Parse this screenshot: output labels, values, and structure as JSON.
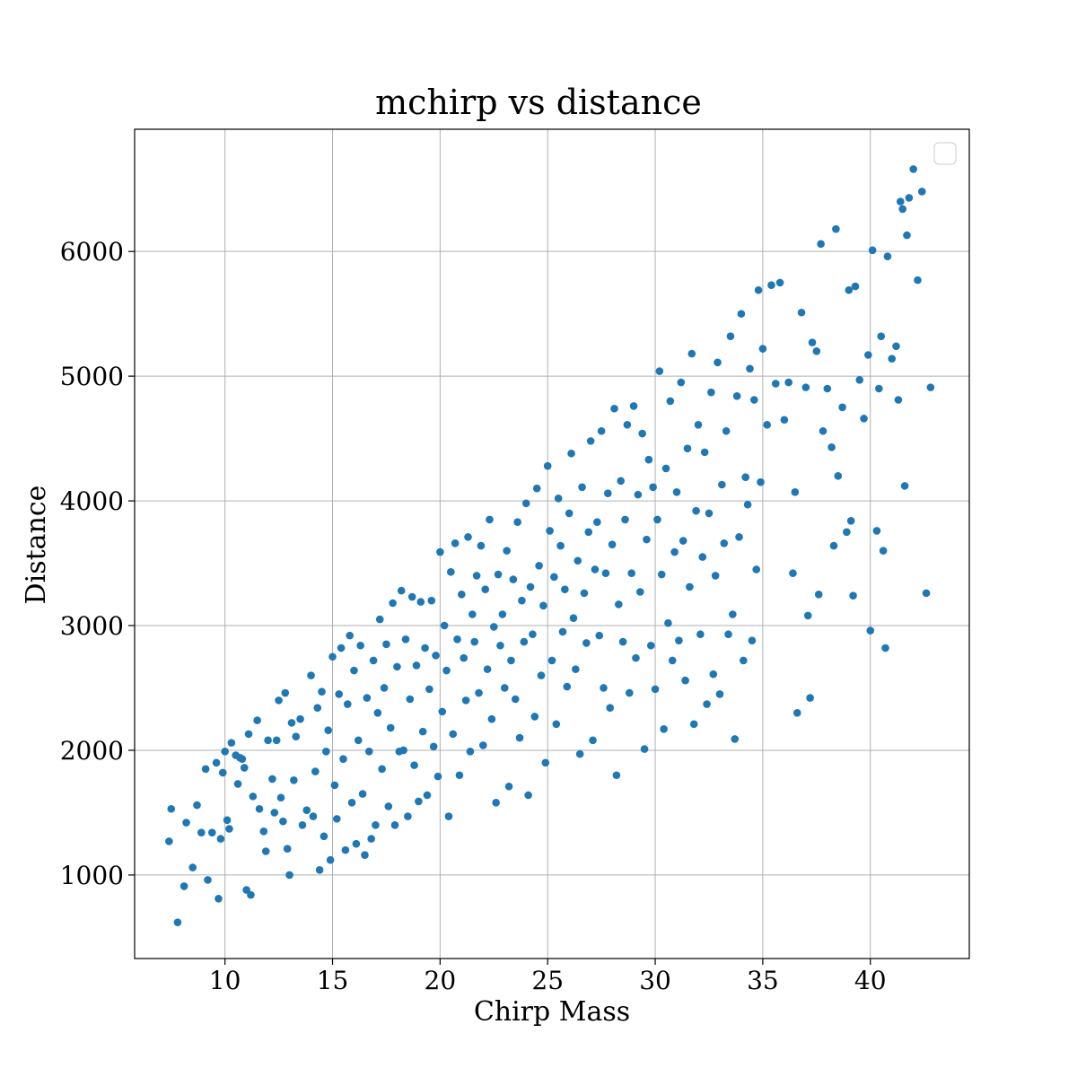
{
  "chart_data": {
    "type": "scatter",
    "title": "mchirp vs distance",
    "xlabel": "Chirp Mass",
    "ylabel": "Distance",
    "xlim": [
      5.8,
      44.6
    ],
    "ylim": [
      330,
      6980
    ],
    "xticks": [
      10,
      15,
      20,
      25,
      30,
      35,
      40
    ],
    "yticks": [
      1000,
      2000,
      3000,
      4000,
      5000,
      6000
    ],
    "grid": true,
    "legend": "top-right (empty)",
    "marker_color": "#1f77b4",
    "series": [
      {
        "points": [
          [
            7.5,
            1530
          ],
          [
            7.4,
            1270
          ],
          [
            7.8,
            620
          ],
          [
            8.1,
            910
          ],
          [
            8.2,
            1420
          ],
          [
            8.5,
            1060
          ],
          [
            8.7,
            1560
          ],
          [
            8.9,
            1340
          ],
          [
            9.1,
            1850
          ],
          [
            9.2,
            960
          ],
          [
            9.4,
            1340
          ],
          [
            9.6,
            1900
          ],
          [
            9.7,
            810
          ],
          [
            9.8,
            1290
          ],
          [
            9.9,
            1820
          ],
          [
            10.0,
            1990
          ],
          [
            10.1,
            1440
          ],
          [
            10.2,
            1370
          ],
          [
            10.3,
            2060
          ],
          [
            10.5,
            1960
          ],
          [
            10.6,
            1730
          ],
          [
            10.7,
            1940
          ],
          [
            10.8,
            1930
          ],
          [
            10.9,
            1860
          ],
          [
            11.0,
            880
          ],
          [
            11.1,
            2130
          ],
          [
            11.2,
            840
          ],
          [
            11.3,
            1630
          ],
          [
            11.5,
            2240
          ],
          [
            11.6,
            1530
          ],
          [
            11.8,
            1350
          ],
          [
            11.9,
            1190
          ],
          [
            12.0,
            2080
          ],
          [
            12.2,
            1770
          ],
          [
            12.3,
            1500
          ],
          [
            12.4,
            2080
          ],
          [
            12.5,
            2400
          ],
          [
            12.6,
            1620
          ],
          [
            12.7,
            1430
          ],
          [
            12.8,
            2460
          ],
          [
            12.9,
            1210
          ],
          [
            13.0,
            1000
          ],
          [
            13.1,
            2220
          ],
          [
            13.2,
            1760
          ],
          [
            13.3,
            2110
          ],
          [
            13.5,
            2250
          ],
          [
            13.6,
            1400
          ],
          [
            13.8,
            1520
          ],
          [
            14.0,
            2600
          ],
          [
            14.1,
            1470
          ],
          [
            14.2,
            1830
          ],
          [
            14.3,
            2340
          ],
          [
            14.4,
            1040
          ],
          [
            14.5,
            2470
          ],
          [
            14.6,
            1310
          ],
          [
            14.7,
            1990
          ],
          [
            14.8,
            2160
          ],
          [
            14.9,
            1120
          ],
          [
            15.0,
            2750
          ],
          [
            15.1,
            1720
          ],
          [
            15.2,
            1450
          ],
          [
            15.3,
            2450
          ],
          [
            15.4,
            2820
          ],
          [
            15.5,
            1930
          ],
          [
            15.6,
            1200
          ],
          [
            15.7,
            2370
          ],
          [
            15.8,
            2920
          ],
          [
            15.9,
            1580
          ],
          [
            16.0,
            2640
          ],
          [
            16.1,
            1250
          ],
          [
            16.2,
            2080
          ],
          [
            16.3,
            2840
          ],
          [
            16.4,
            1650
          ],
          [
            16.5,
            1160
          ],
          [
            16.6,
            2420
          ],
          [
            16.7,
            1990
          ],
          [
            16.8,
            1290
          ],
          [
            16.9,
            2720
          ],
          [
            17.0,
            1400
          ],
          [
            17.1,
            2300
          ],
          [
            17.2,
            3050
          ],
          [
            17.3,
            1850
          ],
          [
            17.4,
            2500
          ],
          [
            17.5,
            2850
          ],
          [
            17.6,
            1550
          ],
          [
            17.7,
            2180
          ],
          [
            17.8,
            3180
          ],
          [
            17.9,
            1400
          ],
          [
            18.0,
            2670
          ],
          [
            18.1,
            1990
          ],
          [
            18.2,
            3280
          ],
          [
            18.3,
            2000
          ],
          [
            18.4,
            2890
          ],
          [
            18.5,
            1470
          ],
          [
            18.6,
            2410
          ],
          [
            18.7,
            3230
          ],
          [
            18.8,
            1880
          ],
          [
            18.9,
            2680
          ],
          [
            19.0,
            1590
          ],
          [
            19.1,
            3190
          ],
          [
            19.2,
            2150
          ],
          [
            19.3,
            2820
          ],
          [
            19.4,
            1640
          ],
          [
            19.5,
            2490
          ],
          [
            19.6,
            3200
          ],
          [
            19.7,
            2030
          ],
          [
            19.8,
            2760
          ],
          [
            19.9,
            1790
          ],
          [
            20.0,
            3590
          ],
          [
            20.1,
            2310
          ],
          [
            20.2,
            3000
          ],
          [
            20.3,
            2640
          ],
          [
            20.4,
            1470
          ],
          [
            20.5,
            3430
          ],
          [
            20.6,
            2130
          ],
          [
            20.7,
            3660
          ],
          [
            20.8,
            2890
          ],
          [
            20.9,
            1800
          ],
          [
            21.0,
            3250
          ],
          [
            21.1,
            2740
          ],
          [
            21.2,
            2400
          ],
          [
            21.3,
            3710
          ],
          [
            21.4,
            1990
          ],
          [
            21.5,
            3090
          ],
          [
            21.6,
            2870
          ],
          [
            21.7,
            3400
          ],
          [
            21.8,
            2460
          ],
          [
            21.9,
            3640
          ],
          [
            22.0,
            2040
          ],
          [
            22.1,
            3290
          ],
          [
            22.2,
            2650
          ],
          [
            22.3,
            3850
          ],
          [
            22.4,
            2250
          ],
          [
            22.5,
            2990
          ],
          [
            22.6,
            1580
          ],
          [
            22.7,
            3410
          ],
          [
            22.8,
            2840
          ],
          [
            22.9,
            3090
          ],
          [
            23.0,
            2500
          ],
          [
            23.1,
            3600
          ],
          [
            23.2,
            1710
          ],
          [
            23.3,
            2720
          ],
          [
            23.4,
            3370
          ],
          [
            23.5,
            2410
          ],
          [
            23.6,
            3830
          ],
          [
            23.7,
            2100
          ],
          [
            23.8,
            3200
          ],
          [
            23.9,
            2870
          ],
          [
            24.0,
            3980
          ],
          [
            24.1,
            1640
          ],
          [
            24.2,
            3310
          ],
          [
            24.3,
            2930
          ],
          [
            24.4,
            2270
          ],
          [
            24.5,
            4100
          ],
          [
            24.6,
            3480
          ],
          [
            24.7,
            2600
          ],
          [
            24.8,
            3160
          ],
          [
            24.9,
            1900
          ],
          [
            25.0,
            4280
          ],
          [
            25.1,
            3760
          ],
          [
            25.2,
            2720
          ],
          [
            25.3,
            3390
          ],
          [
            25.4,
            2210
          ],
          [
            25.5,
            4020
          ],
          [
            25.6,
            3640
          ],
          [
            25.7,
            2950
          ],
          [
            25.8,
            3290
          ],
          [
            25.9,
            2510
          ],
          [
            26.0,
            3900
          ],
          [
            26.1,
            4380
          ],
          [
            26.2,
            3060
          ],
          [
            26.3,
            2650
          ],
          [
            26.4,
            3520
          ],
          [
            26.5,
            1970
          ],
          [
            26.6,
            4110
          ],
          [
            26.7,
            3260
          ],
          [
            26.8,
            2860
          ],
          [
            26.9,
            3750
          ],
          [
            27.0,
            4480
          ],
          [
            27.1,
            2080
          ],
          [
            27.2,
            3450
          ],
          [
            27.3,
            3830
          ],
          [
            27.4,
            2920
          ],
          [
            27.5,
            4560
          ],
          [
            27.6,
            2500
          ],
          [
            27.7,
            3420
          ],
          [
            27.8,
            4060
          ],
          [
            27.9,
            2340
          ],
          [
            28.0,
            3650
          ],
          [
            28.1,
            4740
          ],
          [
            28.2,
            1800
          ],
          [
            28.3,
            3170
          ],
          [
            28.4,
            4160
          ],
          [
            28.5,
            2870
          ],
          [
            28.6,
            3850
          ],
          [
            28.7,
            4610
          ],
          [
            28.8,
            2460
          ],
          [
            28.9,
            3420
          ],
          [
            29.0,
            4760
          ],
          [
            29.1,
            2740
          ],
          [
            29.2,
            4050
          ],
          [
            29.3,
            3270
          ],
          [
            29.4,
            4540
          ],
          [
            29.5,
            2010
          ],
          [
            29.6,
            3690
          ],
          [
            29.7,
            4330
          ],
          [
            29.8,
            2840
          ],
          [
            29.9,
            4110
          ],
          [
            30.0,
            2490
          ],
          [
            30.1,
            3850
          ],
          [
            30.2,
            5040
          ],
          [
            30.3,
            3410
          ],
          [
            30.4,
            2170
          ],
          [
            30.5,
            4260
          ],
          [
            30.6,
            3020
          ],
          [
            30.7,
            4800
          ],
          [
            30.8,
            2720
          ],
          [
            30.9,
            3590
          ],
          [
            31.0,
            4070
          ],
          [
            31.1,
            2880
          ],
          [
            31.2,
            4950
          ],
          [
            31.3,
            3680
          ],
          [
            31.4,
            2560
          ],
          [
            31.5,
            4420
          ],
          [
            31.6,
            3310
          ],
          [
            31.7,
            5180
          ],
          [
            31.8,
            2210
          ],
          [
            31.9,
            3920
          ],
          [
            32.0,
            4610
          ],
          [
            32.1,
            2930
          ],
          [
            32.2,
            3550
          ],
          [
            32.3,
            4390
          ],
          [
            32.4,
            2370
          ],
          [
            32.5,
            3900
          ],
          [
            32.6,
            4870
          ],
          [
            32.7,
            2610
          ],
          [
            32.8,
            3400
          ],
          [
            32.9,
            5110
          ],
          [
            33.0,
            2450
          ],
          [
            33.1,
            4130
          ],
          [
            33.2,
            3660
          ],
          [
            33.3,
            4560
          ],
          [
            33.4,
            2930
          ],
          [
            33.5,
            5320
          ],
          [
            33.6,
            3090
          ],
          [
            33.7,
            2090
          ],
          [
            33.8,
            4840
          ],
          [
            33.9,
            3710
          ],
          [
            34.0,
            5500
          ],
          [
            34.1,
            2720
          ],
          [
            34.2,
            4190
          ],
          [
            34.3,
            3970
          ],
          [
            34.4,
            5060
          ],
          [
            34.5,
            2880
          ],
          [
            34.6,
            4810
          ],
          [
            34.7,
            3450
          ],
          [
            34.8,
            5690
          ],
          [
            34.9,
            4150
          ],
          [
            35.0,
            5220
          ],
          [
            35.2,
            4610
          ],
          [
            35.4,
            5730
          ],
          [
            35.6,
            4940
          ],
          [
            35.8,
            5750
          ],
          [
            36.0,
            4650
          ],
          [
            36.2,
            4950
          ],
          [
            36.4,
            3420
          ],
          [
            36.5,
            4070
          ],
          [
            36.6,
            2300
          ],
          [
            36.8,
            5510
          ],
          [
            37.0,
            4910
          ],
          [
            37.1,
            3080
          ],
          [
            37.2,
            2420
          ],
          [
            37.3,
            5270
          ],
          [
            37.5,
            5200
          ],
          [
            37.6,
            3250
          ],
          [
            37.7,
            6060
          ],
          [
            37.8,
            4560
          ],
          [
            38.0,
            4900
          ],
          [
            38.2,
            4430
          ],
          [
            38.3,
            3640
          ],
          [
            38.4,
            6180
          ],
          [
            38.5,
            4200
          ],
          [
            38.7,
            4750
          ],
          [
            38.9,
            3750
          ],
          [
            39.0,
            5690
          ],
          [
            39.1,
            3840
          ],
          [
            39.2,
            3240
          ],
          [
            39.3,
            5720
          ],
          [
            39.5,
            4970
          ],
          [
            39.7,
            4660
          ],
          [
            39.9,
            5170
          ],
          [
            40.0,
            2960
          ],
          [
            40.1,
            6010
          ],
          [
            40.3,
            3760
          ],
          [
            40.4,
            4900
          ],
          [
            40.5,
            5320
          ],
          [
            40.6,
            3600
          ],
          [
            40.7,
            2820
          ],
          [
            40.8,
            5960
          ],
          [
            41.0,
            5140
          ],
          [
            41.2,
            5240
          ],
          [
            41.3,
            4810
          ],
          [
            41.4,
            6400
          ],
          [
            41.5,
            6340
          ],
          [
            41.6,
            4120
          ],
          [
            41.7,
            6130
          ],
          [
            41.8,
            6430
          ],
          [
            42.0,
            6660
          ],
          [
            42.2,
            5770
          ],
          [
            42.4,
            6480
          ],
          [
            42.6,
            3260
          ],
          [
            42.8,
            4910
          ]
        ]
      }
    ]
  }
}
